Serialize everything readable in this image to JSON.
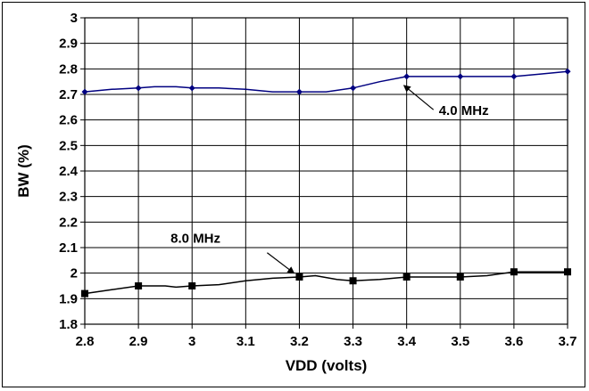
{
  "chart_data": {
    "type": "line",
    "xlabel": "VDD (volts)",
    "ylabel": "BW (%)",
    "xlim": [
      2.8,
      3.7
    ],
    "ylim": [
      1.8,
      3.0
    ],
    "xticks": [
      "2.8",
      "2.9",
      "3",
      "3.1",
      "3.2",
      "3.3",
      "3.4",
      "3.5",
      "3.6",
      "3.7"
    ],
    "yticks": [
      "1.8",
      "1.9",
      "2",
      "2.1",
      "2.2",
      "2.3",
      "2.4",
      "2.5",
      "2.6",
      "2.7",
      "2.8",
      "2.9",
      "3"
    ],
    "grid": true,
    "series": [
      {
        "name": "4.0 MHz",
        "color": "#000080",
        "marker": "diamond",
        "line": [
          [
            2.8,
            2.71
          ],
          [
            2.85,
            2.72
          ],
          [
            2.9,
            2.725
          ],
          [
            2.93,
            2.73
          ],
          [
            2.97,
            2.73
          ],
          [
            3.0,
            2.725
          ],
          [
            3.05,
            2.725
          ],
          [
            3.1,
            2.72
          ],
          [
            3.15,
            2.71
          ],
          [
            3.2,
            2.71
          ],
          [
            3.25,
            2.71
          ],
          [
            3.3,
            2.725
          ],
          [
            3.35,
            2.75
          ],
          [
            3.4,
            2.77
          ],
          [
            3.5,
            2.77
          ],
          [
            3.6,
            2.77
          ],
          [
            3.65,
            2.78
          ],
          [
            3.7,
            2.79
          ]
        ],
        "points": [
          [
            2.8,
            2.71
          ],
          [
            2.9,
            2.725
          ],
          [
            3.0,
            2.725
          ],
          [
            3.2,
            2.71
          ],
          [
            3.3,
            2.725
          ],
          [
            3.4,
            2.77
          ],
          [
            3.5,
            2.77
          ],
          [
            3.6,
            2.77
          ],
          [
            3.7,
            2.79
          ]
        ]
      },
      {
        "name": "8.0 MHz",
        "color": "#000000",
        "marker": "square",
        "line": [
          [
            2.8,
            1.92
          ],
          [
            2.85,
            1.935
          ],
          [
            2.9,
            1.95
          ],
          [
            2.95,
            1.95
          ],
          [
            2.97,
            1.945
          ],
          [
            3.0,
            1.95
          ],
          [
            3.05,
            1.955
          ],
          [
            3.1,
            1.97
          ],
          [
            3.15,
            1.98
          ],
          [
            3.2,
            1.985
          ],
          [
            3.23,
            1.99
          ],
          [
            3.27,
            1.975
          ],
          [
            3.3,
            1.97
          ],
          [
            3.35,
            1.975
          ],
          [
            3.4,
            1.985
          ],
          [
            3.5,
            1.985
          ],
          [
            3.55,
            1.99
          ],
          [
            3.6,
            2.005
          ],
          [
            3.7,
            2.005
          ]
        ],
        "points": [
          [
            2.8,
            1.92
          ],
          [
            2.9,
            1.95
          ],
          [
            3.0,
            1.95
          ],
          [
            3.2,
            1.985
          ],
          [
            3.3,
            1.97
          ],
          [
            3.4,
            1.985
          ],
          [
            3.5,
            1.985
          ],
          [
            3.6,
            2.005
          ],
          [
            3.7,
            2.005
          ]
        ]
      }
    ],
    "annotations": [
      {
        "text": "4.0 MHz",
        "series": "4.0 MHz",
        "label_at": [
          3.46,
          2.62
        ],
        "arrow_from": [
          3.45,
          2.64
        ],
        "arrow_to": [
          3.395,
          2.735
        ]
      },
      {
        "text": "8.0 MHz",
        "series": "8.0 MHz",
        "label_at": [
          2.96,
          2.12
        ],
        "arrow_from": [
          3.14,
          2.08
        ],
        "arrow_to": [
          3.19,
          2.0
        ]
      }
    ]
  }
}
